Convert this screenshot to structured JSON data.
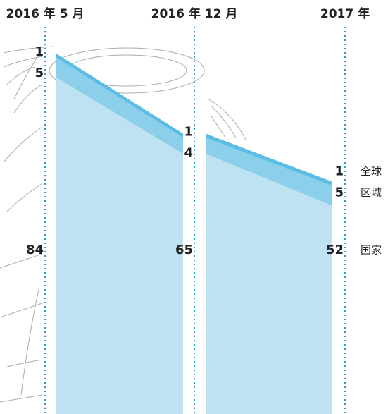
{
  "chart_data": {
    "type": "stacked-area",
    "categories": [
      "2016 年 5 月",
      "2016 年 12 月",
      "2017 年"
    ],
    "series": [
      {
        "name": "全球",
        "color": "#5bbde4",
        "values": [
          1,
          1,
          1
        ]
      },
      {
        "name": "区域",
        "color": "#8ccfea",
        "values": [
          5,
          4,
          5
        ]
      },
      {
        "name": "国家",
        "color": "#bfe2f2",
        "values": [
          84,
          65,
          52
        ]
      }
    ]
  }
}
